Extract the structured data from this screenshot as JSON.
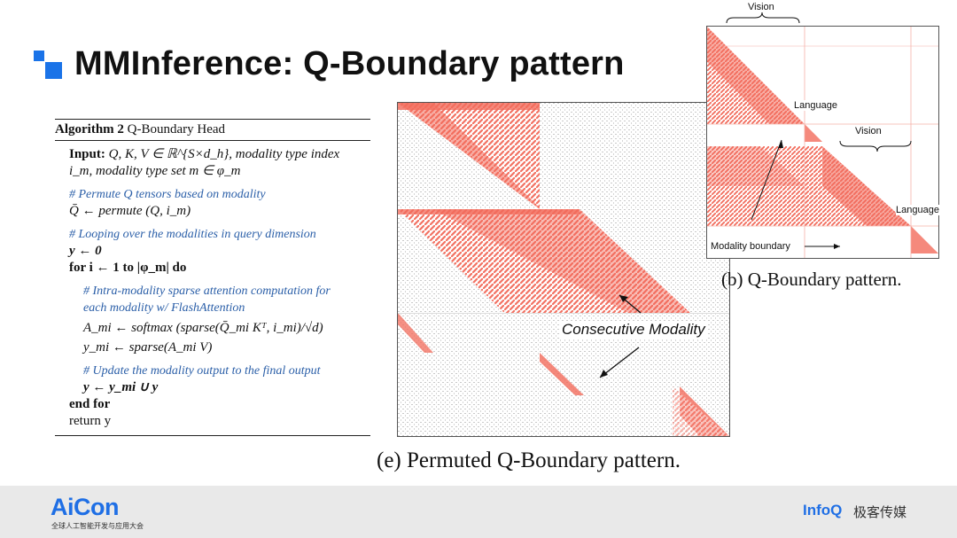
{
  "title": "MMInference: Q-Boundary pattern",
  "algorithm": {
    "heading_bold": "Algorithm 2",
    "heading_rest": " Q-Boundary Head",
    "input_label": "Input:",
    "input_line1": "Q, K, V ∈ ℝ^{S×d_h}, modality type index",
    "input_line2": "i_m, modality type set m ∈ φ_m",
    "comment_permute": "# Permute Q tensors based on modality",
    "permute_line": "Q̄ ← permute (Q, i_m)",
    "comment_loop": "# Looping over the modalities in query dimension",
    "init_line": "y ← 0",
    "for_line": "for i ← 1 to |φ_m| do",
    "comment_intra1": "# Intra-modality sparse attention computation for",
    "comment_intra2": "each modality w/ FlashAttention",
    "softmax_line": "A_mi ← softmax (sparse(Q̄_mi Kᵀ, i_mi)/√d)",
    "sparse_line": "y_mi ← sparse(A_mi V)",
    "comment_update": "# Update the modality output to the final output",
    "union_line": "y ← y_mi ∪ y",
    "end_for": "end for",
    "return_line": "return y"
  },
  "figure_b": {
    "caption": "(b) Q-Boundary pattern.",
    "labels": {
      "vision_top": "Vision",
      "language_1": "Language",
      "vision_2": "Vision",
      "language_2": "Language",
      "modality_boundary": "Modality boundary"
    }
  },
  "figure_e": {
    "caption": "(e) Permuted Q-Boundary pattern.",
    "annotation": "Consecutive Modality"
  },
  "footer": {
    "brand": "AiCon",
    "brand_sub": "全球人工智能开发与应用大会",
    "partner": "InfoQ",
    "partner_cn": "极客传媒"
  },
  "colors": {
    "accent": "#1a73e8",
    "heatmap": "#f26b5b",
    "comment": "#2b5fa8"
  }
}
